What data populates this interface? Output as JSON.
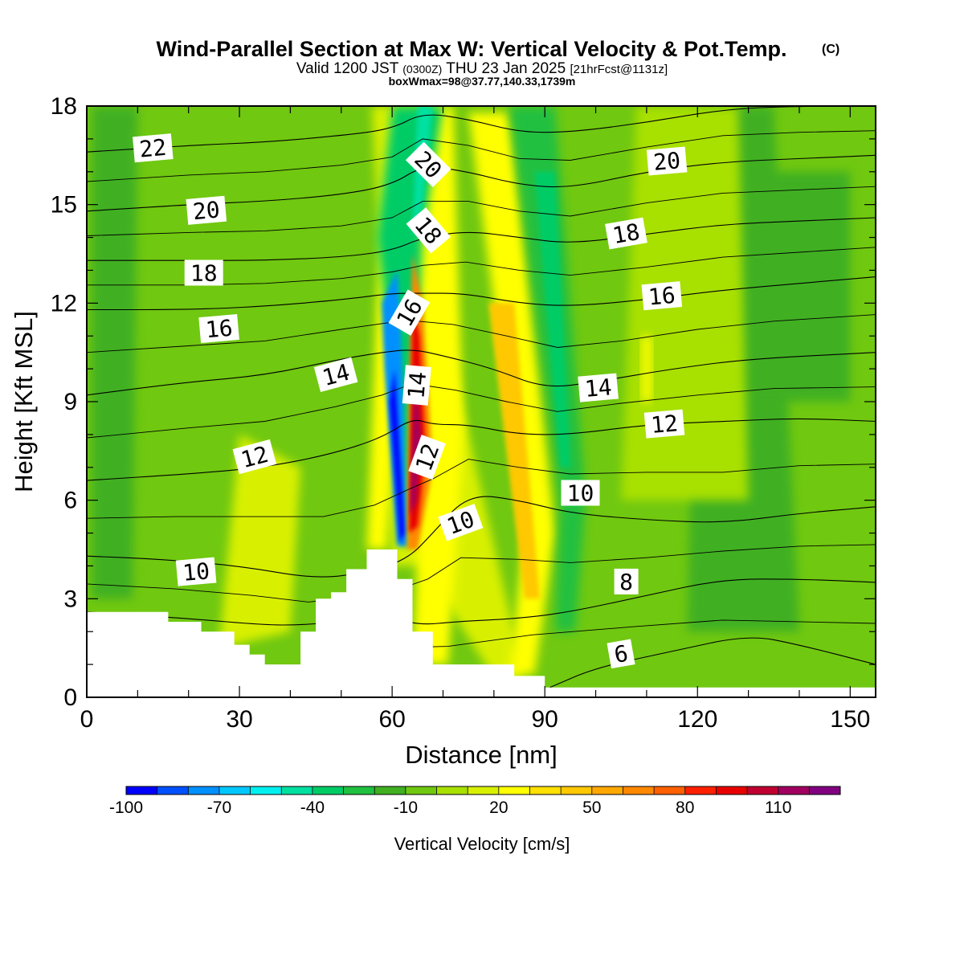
{
  "chart_data": {
    "type": "heatmap",
    "title": "Wind-Parallel Section at Max W: Vertical Velocity & Pot.Temp.",
    "title_mark": "(C)",
    "subtitle": {
      "part1": "Valid 1200 JST",
      "part2": "(0300Z)",
      "part3": "THU 23 Jan 2025",
      "part4": "[21hrFcst@1131z]"
    },
    "subtitle2": "boxWmax=98@37.77,140.33,1739m",
    "xlabel": "Distance [nm]",
    "ylabel": "Height [Kft MSL]",
    "xlim": [
      0,
      155
    ],
    "ylim": [
      0,
      18
    ],
    "x_ticks": [
      "0",
      "30",
      "60",
      "90",
      "120",
      "150"
    ],
    "x_tick_values": [
      0,
      30,
      60,
      90,
      120,
      150
    ],
    "y_ticks": [
      "0",
      "3",
      "6",
      "9",
      "12",
      "15",
      "18"
    ],
    "y_tick_values": [
      0,
      3,
      6,
      9,
      12,
      15,
      18
    ],
    "colorbar": {
      "title": "Vertical Velocity [cm/s]",
      "labels": [
        "-100",
        "-70",
        "-40",
        "-10",
        "20",
        "50",
        "80",
        "110"
      ],
      "label_values": [
        -100,
        -70,
        -40,
        -10,
        20,
        50,
        80,
        110
      ],
      "range": [
        -100,
        130
      ],
      "step": 10,
      "colors": [
        "#0000ff",
        "#0050ff",
        "#0090ff",
        "#00c8ff",
        "#00f0f0",
        "#00e0a0",
        "#00cc66",
        "#20c040",
        "#40b020",
        "#70c810",
        "#a8e000",
        "#d8f000",
        "#ffff00",
        "#ffe000",
        "#ffc800",
        "#ffa800",
        "#ff8800",
        "#ff6000",
        "#ff2000",
        "#e80000",
        "#c00030",
        "#a00060",
        "#800080"
      ]
    },
    "field_levels": [
      {
        "name": "ridge-upslope-updraft",
        "center_w": 95
      },
      {
        "name": "lee-downdraft",
        "center_w": -85
      },
      {
        "name": "upper-downdraft",
        "center_w": -45
      },
      {
        "name": "band-90",
        "center_w": 40
      },
      {
        "name": "band-85",
        "center_w": 55
      },
      {
        "name": "band-93-down",
        "center_w": -25
      },
      {
        "name": "background",
        "center_w": -5
      }
    ],
    "theta_contours": [
      {
        "label": "6",
        "points": [
          [
            91,
            0.3
          ],
          [
            100,
            0.9
          ],
          [
            115,
            1.4
          ],
          [
            130,
            1.9
          ],
          [
            140,
            1.6
          ],
          [
            155,
            1.0
          ]
        ]
      },
      {
        "label": "8",
        "points": [
          [
            0,
            2.6
          ],
          [
            20,
            2.4
          ],
          [
            35,
            2.2
          ],
          [
            42,
            2.2
          ],
          [
            50,
            2.3
          ],
          [
            60,
            2.4
          ],
          [
            66,
            2.2
          ],
          [
            72,
            2.3
          ],
          [
            85,
            2.4
          ],
          [
            95,
            2.6
          ],
          [
            110,
            3.1
          ],
          [
            125,
            3.6
          ],
          [
            140,
            3.6
          ],
          [
            155,
            3.5
          ]
        ]
      },
      {
        "label": "10",
        "points": [
          [
            0,
            4.3
          ],
          [
            15,
            4.2
          ],
          [
            30,
            4.0
          ],
          [
            45,
            3.6
          ],
          [
            55,
            3.8
          ],
          [
            63,
            4.2
          ],
          [
            68,
            5.0
          ],
          [
            75,
            6.2
          ],
          [
            85,
            6.0
          ],
          [
            95,
            5.6
          ],
          [
            110,
            5.4
          ],
          [
            125,
            5.3
          ],
          [
            140,
            5.6
          ],
          [
            155,
            5.8
          ]
        ]
      },
      {
        "label": "12",
        "points": [
          [
            0,
            6.6
          ],
          [
            20,
            6.8
          ],
          [
            35,
            7.0
          ],
          [
            48,
            7.4
          ],
          [
            58,
            7.9
          ],
          [
            64,
            8.5
          ],
          [
            68,
            8.3
          ],
          [
            75,
            8.3
          ],
          [
            85,
            8.0
          ],
          [
            95,
            8.0
          ],
          [
            110,
            8.3
          ],
          [
            125,
            8.4
          ],
          [
            140,
            8.5
          ],
          [
            155,
            8.4
          ]
        ]
      },
      {
        "label": "14",
        "points": [
          [
            0,
            9.2
          ],
          [
            20,
            9.6
          ],
          [
            35,
            9.8
          ],
          [
            50,
            10.3
          ],
          [
            58,
            10.5
          ],
          [
            64,
            10.6
          ],
          [
            70,
            10.4
          ],
          [
            80,
            10.0
          ],
          [
            90,
            9.4
          ],
          [
            100,
            9.6
          ],
          [
            115,
            10.0
          ],
          [
            130,
            10.3
          ],
          [
            155,
            10.5
          ]
        ]
      },
      {
        "label": "16",
        "points": [
          [
            0,
            11.8
          ],
          [
            20,
            11.8
          ],
          [
            35,
            11.9
          ],
          [
            50,
            12.1
          ],
          [
            60,
            12.3
          ],
          [
            66,
            12.3
          ],
          [
            74,
            12.3
          ],
          [
            85,
            12.0
          ],
          [
            95,
            11.9
          ],
          [
            110,
            12.1
          ],
          [
            125,
            12.4
          ],
          [
            140,
            12.6
          ],
          [
            155,
            12.8
          ]
        ]
      },
      {
        "label": "18",
        "points": [
          [
            0,
            13.3
          ],
          [
            20,
            13.3
          ],
          [
            35,
            13.3
          ],
          [
            50,
            13.4
          ],
          [
            60,
            13.6
          ],
          [
            66,
            14.0
          ],
          [
            75,
            14.2
          ],
          [
            85,
            14.0
          ],
          [
            95,
            13.8
          ],
          [
            110,
            14.1
          ],
          [
            125,
            14.4
          ],
          [
            140,
            14.5
          ],
          [
            155,
            14.6
          ]
        ]
      },
      {
        "label": "20",
        "points": [
          [
            0,
            14.8
          ],
          [
            20,
            15.0
          ],
          [
            35,
            15.1
          ],
          [
            50,
            15.3
          ],
          [
            60,
            15.6
          ],
          [
            66,
            16.2
          ],
          [
            75,
            16.0
          ],
          [
            85,
            15.6
          ],
          [
            95,
            15.5
          ],
          [
            110,
            16.0
          ],
          [
            125,
            16.3
          ],
          [
            140,
            16.4
          ],
          [
            155,
            16.5
          ]
        ]
      },
      {
        "label": "22",
        "points": [
          [
            0,
            16.6
          ],
          [
            20,
            16.8
          ],
          [
            35,
            16.9
          ],
          [
            50,
            17.1
          ],
          [
            60,
            17.3
          ],
          [
            66,
            17.8
          ],
          [
            75,
            17.6
          ],
          [
            85,
            17.2
          ],
          [
            95,
            17.2
          ],
          [
            110,
            17.5
          ],
          [
            125,
            17.9
          ],
          [
            140,
            18.0
          ],
          [
            155,
            18.0
          ]
        ]
      }
    ],
    "contour_labels": [
      {
        "text": "22",
        "x": 13,
        "y": 16.7,
        "rot": -5
      },
      {
        "text": "20",
        "x": 23.5,
        "y": 14.8,
        "rot": -5
      },
      {
        "text": "18",
        "x": 23,
        "y": 12.9,
        "rot": 0
      },
      {
        "text": "16",
        "x": 26,
        "y": 11.2,
        "rot": -5
      },
      {
        "text": "14",
        "x": 49,
        "y": 9.8,
        "rot": -15
      },
      {
        "text": "12",
        "x": 33,
        "y": 7.3,
        "rot": -15
      },
      {
        "text": "10",
        "x": 21.5,
        "y": 3.8,
        "rot": -5
      },
      {
        "text": "20",
        "x": 67,
        "y": 16.2,
        "rot": 45
      },
      {
        "text": "18",
        "x": 67,
        "y": 14.2,
        "rot": 50
      },
      {
        "text": "16",
        "x": 63.5,
        "y": 11.7,
        "rot": -60
      },
      {
        "text": "14",
        "x": 65,
        "y": 9.5,
        "rot": -85
      },
      {
        "text": "12",
        "x": 67,
        "y": 7.3,
        "rot": -70
      },
      {
        "text": "10",
        "x": 73.5,
        "y": 5.3,
        "rot": -20
      },
      {
        "text": "20",
        "x": 114,
        "y": 16.3,
        "rot": -5
      },
      {
        "text": "18",
        "x": 106,
        "y": 14.1,
        "rot": -10
      },
      {
        "text": "16",
        "x": 113,
        "y": 12.2,
        "rot": -5
      },
      {
        "text": "14",
        "x": 100.5,
        "y": 9.4,
        "rot": -5
      },
      {
        "text": "12",
        "x": 113.5,
        "y": 8.3,
        "rot": -5
      },
      {
        "text": "10",
        "x": 97,
        "y": 6.2,
        "rot": 0
      },
      {
        "text": "8",
        "x": 106,
        "y": 3.5,
        "rot": 0
      },
      {
        "text": "6",
        "x": 105,
        "y": 1.3,
        "rot": -10
      }
    ],
    "terrain": [
      [
        0,
        2.6
      ],
      [
        16,
        2.6
      ],
      [
        16,
        2.3
      ],
      [
        22.5,
        2.3
      ],
      [
        22.5,
        2.0
      ],
      [
        29,
        2.0
      ],
      [
        29,
        1.6
      ],
      [
        32,
        1.6
      ],
      [
        32,
        1.3
      ],
      [
        35,
        1.3
      ],
      [
        35,
        1.0
      ],
      [
        42,
        1.0
      ],
      [
        42,
        2.0
      ],
      [
        45,
        2.0
      ],
      [
        45,
        3.0
      ],
      [
        48,
        3.0
      ],
      [
        48,
        3.2
      ],
      [
        51,
        3.2
      ],
      [
        51,
        3.9
      ],
      [
        55,
        3.9
      ],
      [
        55,
        4.5
      ],
      [
        61,
        4.5
      ],
      [
        61,
        3.6
      ],
      [
        64,
        3.6
      ],
      [
        64,
        2.0
      ],
      [
        68,
        2.0
      ],
      [
        68,
        1.0
      ],
      [
        84,
        1.0
      ],
      [
        84,
        0.65
      ],
      [
        90,
        0.65
      ],
      [
        90,
        0.3
      ],
      [
        155,
        0.3
      ]
    ]
  }
}
